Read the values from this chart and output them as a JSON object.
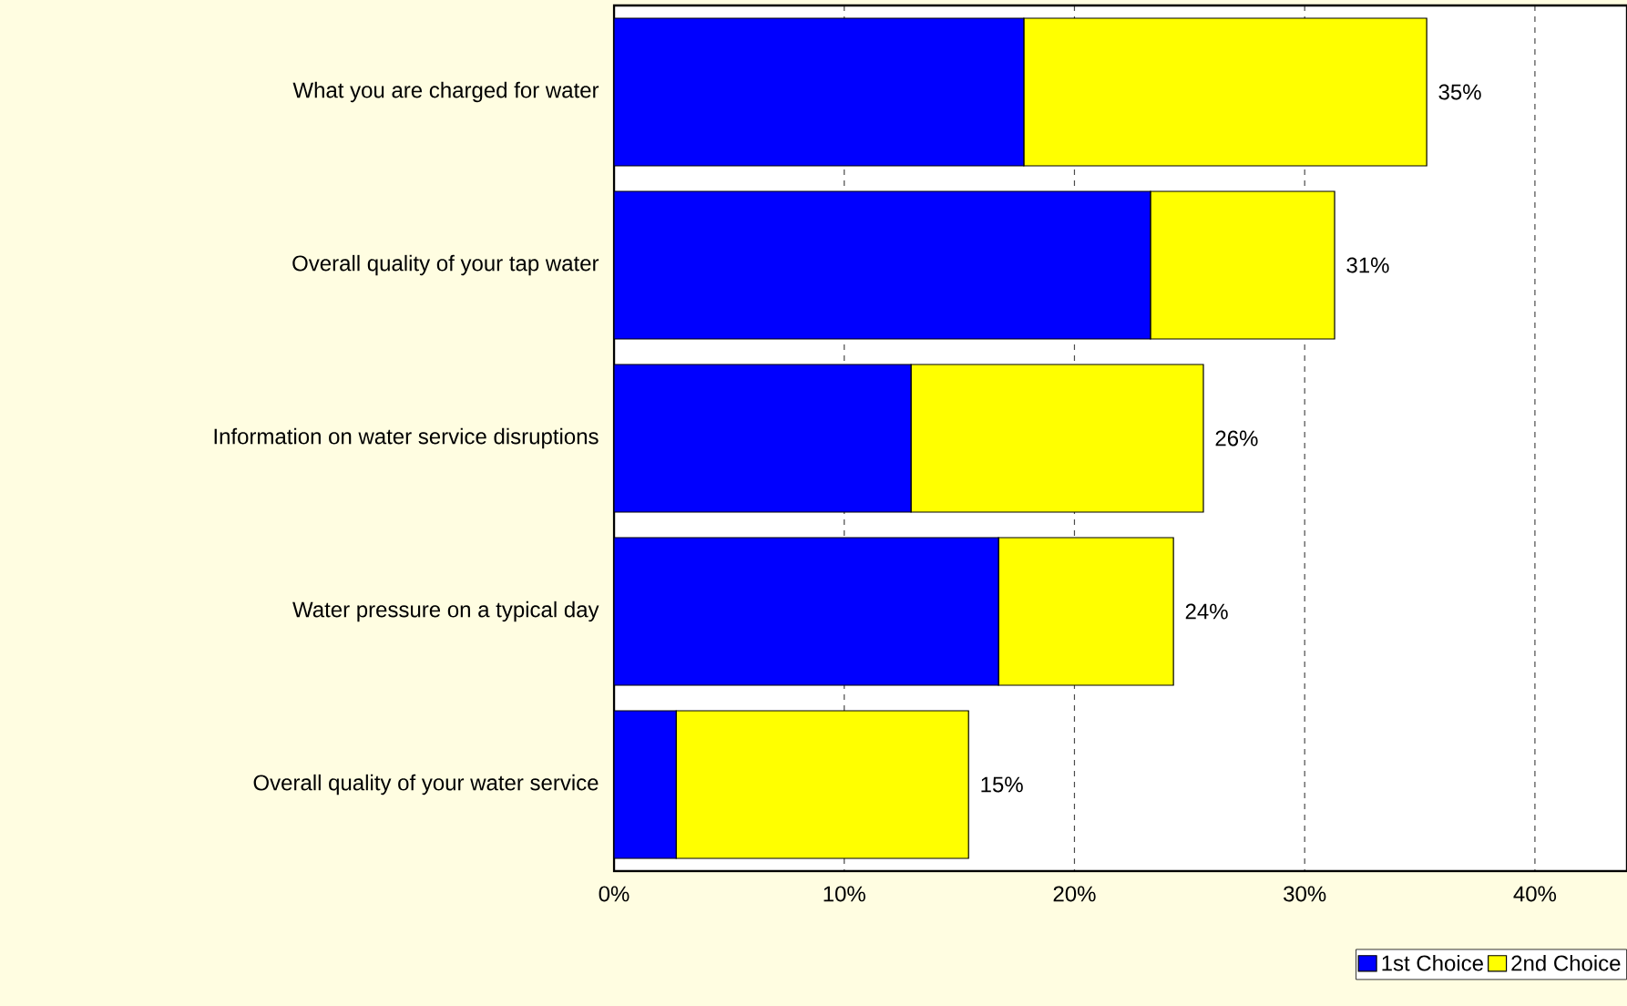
{
  "chart_data": {
    "type": "bar",
    "orientation": "horizontal",
    "stacked": true,
    "categories": [
      "What you are charged for water",
      "Overall quality of your tap water",
      "Information on water service disruptions",
      "Water pressure on a typical day",
      "Overall quality of your water service"
    ],
    "series": [
      {
        "name": "1st Choice",
        "color": "#0000ff",
        "values": [
          17.8,
          23.3,
          12.9,
          16.7,
          2.7
        ]
      },
      {
        "name": "2nd Choice",
        "color": "#ffff00",
        "values": [
          17.5,
          8.0,
          12.7,
          7.6,
          12.7
        ]
      }
    ],
    "totals": [
      "35%",
      "31%",
      "26%",
      "24%",
      "15%"
    ],
    "xlim": [
      0,
      44
    ],
    "xticks": [
      {
        "value": 0,
        "label": "0%"
      },
      {
        "value": 10,
        "label": "10%"
      },
      {
        "value": 20,
        "label": "20%"
      },
      {
        "value": 30,
        "label": "30%"
      },
      {
        "value": 40,
        "label": "40%"
      }
    ],
    "grid": "x",
    "legend": "bottom right"
  }
}
